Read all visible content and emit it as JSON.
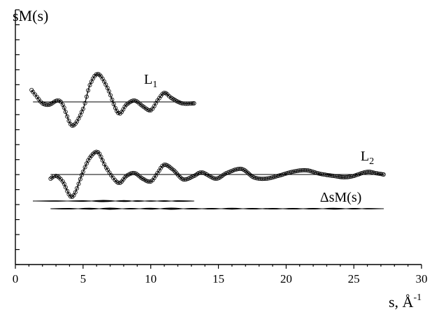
{
  "chart_data": {
    "type": "line",
    "title": "",
    "ylabel": "sM(s)",
    "xlabel": "s, Å",
    "xlabel_sup": "-1",
    "xlim": [
      0,
      30
    ],
    "x_ticks": [
      0,
      5,
      10,
      15,
      20,
      25,
      30
    ],
    "y_minor_tick_count": 17,
    "grid": false,
    "annotations": [
      {
        "text": "L",
        "sub": "1",
        "at": [
          9.5,
          1.3
        ]
      },
      {
        "text": "L",
        "sub": "2",
        "at": [
          25.5,
          1.0
        ]
      },
      {
        "text": "ΔsM(s)",
        "at": [
          22.5,
          0.25
        ]
      }
    ],
    "series": [
      {
        "label": "L1",
        "role": "curve",
        "baseline": 0,
        "offset": 5.2,
        "x_range": [
          1.2,
          13.2
        ],
        "baseline_x": [
          1.3,
          13.2
        ],
        "points": [
          [
            1.2,
            0.85
          ],
          [
            1.6,
            0.35
          ],
          [
            2.0,
            -0.1
          ],
          [
            2.5,
            -0.2
          ],
          [
            3.1,
            0.1
          ],
          [
            3.5,
            -0.2
          ],
          [
            4.2,
            -1.7
          ],
          [
            5.0,
            -0.5
          ],
          [
            5.5,
            1.2
          ],
          [
            6.1,
            2.0
          ],
          [
            6.8,
            1.0
          ],
          [
            7.6,
            -0.8
          ],
          [
            8.2,
            -0.2
          ],
          [
            8.8,
            0.1
          ],
          [
            9.4,
            -0.3
          ],
          [
            10.0,
            -0.6
          ],
          [
            10.5,
            0.1
          ],
          [
            11.0,
            0.65
          ],
          [
            11.5,
            0.3
          ],
          [
            12.3,
            -0.1
          ],
          [
            13.2,
            -0.1
          ]
        ]
      },
      {
        "label": "L2",
        "role": "curve",
        "baseline": 0,
        "offset": 0,
        "x_range": [
          2.6,
          27.2
        ],
        "baseline_x": [
          2.6,
          27.2
        ],
        "points": [
          [
            2.6,
            -0.3
          ],
          [
            3.0,
            -0.1
          ],
          [
            3.5,
            -0.5
          ],
          [
            4.2,
            -1.6
          ],
          [
            5.0,
            0.2
          ],
          [
            5.5,
            1.2
          ],
          [
            6.1,
            1.6
          ],
          [
            6.7,
            0.5
          ],
          [
            7.6,
            -0.6
          ],
          [
            8.2,
            -0.1
          ],
          [
            8.8,
            0.1
          ],
          [
            9.4,
            -0.3
          ],
          [
            10.0,
            -0.5
          ],
          [
            10.5,
            0.1
          ],
          [
            11.0,
            0.7
          ],
          [
            11.7,
            0.3
          ],
          [
            12.4,
            -0.35
          ],
          [
            13.2,
            -0.1
          ],
          [
            13.8,
            0.15
          ],
          [
            14.8,
            -0.3
          ],
          [
            15.6,
            0.1
          ],
          [
            16.7,
            0.4
          ],
          [
            17.6,
            -0.2
          ],
          [
            18.5,
            -0.3
          ],
          [
            19.4,
            -0.1
          ],
          [
            20.5,
            0.2
          ],
          [
            21.5,
            0.3
          ],
          [
            22.5,
            0.05
          ],
          [
            23.5,
            -0.1
          ],
          [
            24.3,
            -0.2
          ],
          [
            25.0,
            -0.1
          ],
          [
            25.6,
            0.1
          ],
          [
            26.1,
            0.2
          ],
          [
            26.6,
            0.1
          ],
          [
            27.2,
            0.0
          ]
        ]
      },
      {
        "label": "ΔsM(s) L1",
        "role": "residual",
        "baseline": 0,
        "offset": -1.9,
        "x_range": [
          1.3,
          13.2
        ],
        "baseline_x": [
          1.3,
          13.2
        ],
        "points": [
          [
            1.3,
            0.0
          ],
          [
            3.0,
            0.02
          ],
          [
            5.0,
            -0.03
          ],
          [
            6.5,
            0.05
          ],
          [
            8.0,
            -0.04
          ],
          [
            9.0,
            0.03
          ],
          [
            10.0,
            -0.02
          ],
          [
            11.0,
            0.03
          ],
          [
            12.0,
            -0.03
          ],
          [
            13.2,
            0.0
          ]
        ]
      },
      {
        "label": "ΔsM(s) L2",
        "role": "residual",
        "baseline": 0,
        "offset": -2.45,
        "x_range": [
          2.6,
          27.2
        ],
        "baseline_x": [
          2.6,
          27.2
        ],
        "points": [
          [
            2.6,
            0.0
          ],
          [
            4.0,
            0.03
          ],
          [
            5.5,
            -0.04
          ],
          [
            7.0,
            0.05
          ],
          [
            8.5,
            -0.03
          ],
          [
            10.0,
            0.04
          ],
          [
            11.5,
            -0.05
          ],
          [
            13.0,
            0.03
          ],
          [
            14.5,
            -0.03
          ],
          [
            16.0,
            0.04
          ],
          [
            17.5,
            -0.03
          ],
          [
            19.0,
            0.03
          ],
          [
            20.5,
            -0.03
          ],
          [
            22.0,
            0.03
          ],
          [
            23.5,
            -0.04
          ],
          [
            25.0,
            0.03
          ],
          [
            26.0,
            -0.02
          ],
          [
            27.2,
            0.0
          ]
        ]
      }
    ]
  }
}
